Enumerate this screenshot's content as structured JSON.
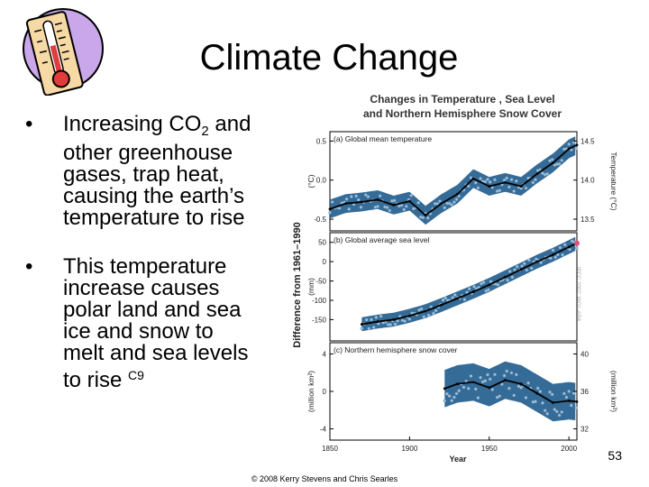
{
  "slide": {
    "title": "Climate Change",
    "bullets": [
      {
        "symbol": "•",
        "lines": [
          {
            "before": "Increasing CO",
            "sub": "2",
            "after": " and"
          },
          {
            "before": "other  greenhouse"
          },
          {
            "before": "gases, trap heat,"
          },
          {
            "before": "causing the earth’s"
          },
          {
            "before": "temperature to rise"
          }
        ]
      },
      {
        "symbol": "•",
        "lines": [
          {
            "before": "This temperature"
          },
          {
            "before": "increase causes"
          },
          {
            "before": "polar land and sea"
          },
          {
            "before": "ice and snow to"
          },
          {
            "before": "melt and sea levels"
          },
          {
            "before": "to rise ",
            "sup": "C9"
          }
        ]
      }
    ],
    "page_number": "53",
    "footer": "© 2008 Kerry Stevens and Chris Searles"
  },
  "figure": {
    "title_line1": "Changes in Temperature , Sea Level",
    "title_line2": "and Northern Hemisphere Snow Cover",
    "shared_ylabel": "Difference from 1961–1990",
    "watermark": "IPCC 2007: WG1-AR4",
    "colors": {
      "band": "#1f5b8c",
      "point": "#9dc1dc",
      "line": "#000000",
      "marker": "#e0507a"
    }
  },
  "chart_data": [
    {
      "type": "line",
      "panel_label": "(a) Global mean temperature",
      "ylabel": "(°C)",
      "ylabel_right": "Temperature (°C)",
      "xlim": [
        1850,
        2005
      ],
      "ylim": [
        -0.65,
        0.62
      ],
      "yticks": [
        "0.5",
        "0.0",
        "-0.5"
      ],
      "yticks_right": [
        "14.5",
        "14.0",
        "13.5"
      ],
      "years": [
        1850,
        1860,
        1870,
        1880,
        1890,
        1900,
        1910,
        1920,
        1930,
        1940,
        1950,
        1960,
        1970,
        1980,
        1990,
        2000,
        2005
      ],
      "values": [
        -0.37,
        -0.3,
        -0.28,
        -0.25,
        -0.32,
        -0.27,
        -0.45,
        -0.3,
        -0.18,
        0.02,
        -0.08,
        -0.03,
        -0.08,
        0.08,
        0.22,
        0.4,
        0.45
      ],
      "band": 0.12
    },
    {
      "type": "line",
      "panel_label": "(b) Global average sea level",
      "ylabel": "(mm)",
      "xlim": [
        1850,
        2005
      ],
      "ylim": [
        -205,
        75
      ],
      "yticks": [
        "50",
        "0",
        "-50",
        "-100",
        "-150"
      ],
      "years": [
        1870,
        1880,
        1890,
        1900,
        1910,
        1920,
        1930,
        1940,
        1950,
        1960,
        1970,
        1980,
        1990,
        2000,
        2005
      ],
      "values": [
        -162,
        -155,
        -150,
        -140,
        -128,
        -112,
        -95,
        -78,
        -60,
        -40,
        -20,
        0,
        18,
        38,
        48
      ],
      "band": 18
    },
    {
      "type": "line",
      "panel_label": "(c) Northern hemisphere snow cover",
      "ylabel": "(million km²)",
      "ylabel_right": "(million km²)",
      "xlim": [
        1850,
        2005
      ],
      "ylim": [
        -5.2,
        5.2
      ],
      "yticks": [
        "4",
        "0",
        "-4"
      ],
      "yticks_right": [
        "40",
        "36",
        "32"
      ],
      "years": [
        1922,
        1930,
        1940,
        1950,
        1960,
        1970,
        1980,
        1990,
        2000,
        2005
      ],
      "values": [
        0.3,
        0.8,
        1.0,
        0.4,
        1.2,
        0.8,
        -0.2,
        -1.2,
        -1.0,
        -1.1
      ],
      "band": 2.0,
      "xlabel": "Year",
      "xticks": [
        "1850",
        "1900",
        "1950",
        "2000"
      ]
    }
  ]
}
